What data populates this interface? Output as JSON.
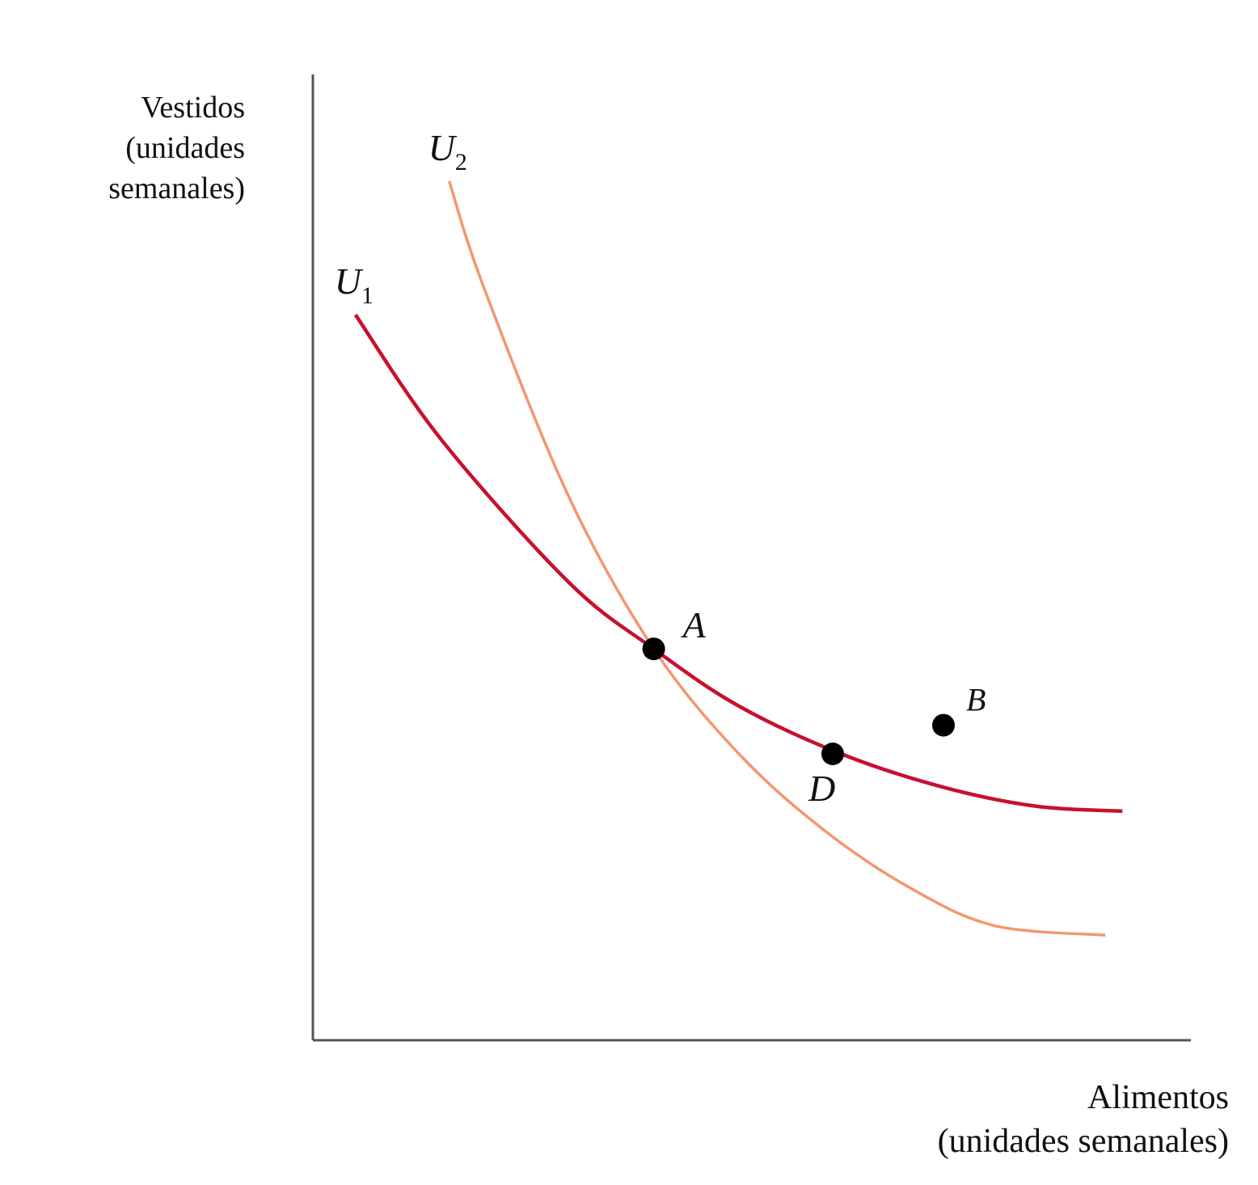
{
  "chart_data": {
    "type": "line",
    "title": "",
    "ylabel": [
      "Vestidos",
      "(unidades",
      "semanales)"
    ],
    "xlabel": [
      "Alimentos",
      "(unidades semanales)"
    ],
    "axis_ticks": "none",
    "grid": false,
    "colors": {
      "U1": "#c8102e",
      "U2": "#f4966e",
      "axis": "#555555",
      "point": "#000000"
    },
    "series": [
      {
        "name": "U1",
        "label_main": "U",
        "label_sub": "1",
        "points": [
          [
            0.5,
            7.6
          ],
          [
            1.5,
            6.3
          ],
          [
            3,
            4.8
          ],
          [
            4,
            4.1
          ],
          [
            5,
            3.5
          ],
          [
            6.2,
            3.0
          ],
          [
            7.4,
            2.65
          ],
          [
            8.5,
            2.45
          ],
          [
            9.5,
            2.4
          ]
        ]
      },
      {
        "name": "U2",
        "label_main": "U",
        "label_sub": "2",
        "points": [
          [
            1.6,
            9.0
          ],
          [
            2,
            7.9
          ],
          [
            3,
            5.7
          ],
          [
            4,
            4.1
          ],
          [
            5,
            3.0
          ],
          [
            6,
            2.2
          ],
          [
            7,
            1.6
          ],
          [
            8,
            1.2
          ],
          [
            9.3,
            1.1
          ]
        ]
      }
    ],
    "points": [
      {
        "label": "A",
        "x": 4.0,
        "y": 4.1
      },
      {
        "label": "D",
        "x": 6.1,
        "y": 3.0
      },
      {
        "label": "B",
        "x": 7.4,
        "y": 3.3
      }
    ],
    "xlim": [
      0,
      10
    ],
    "ylim": [
      0,
      10
    ]
  }
}
